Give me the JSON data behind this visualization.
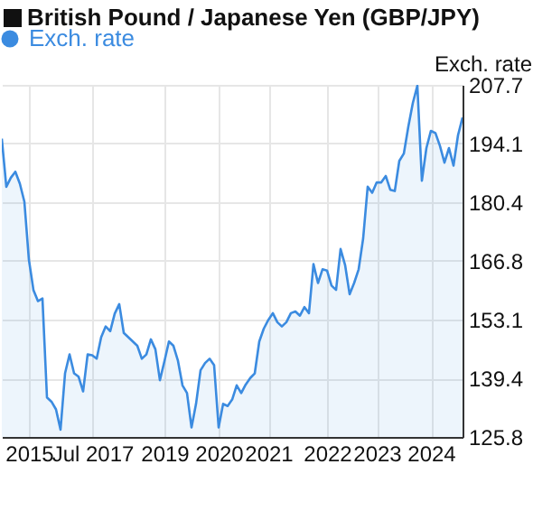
{
  "chart_data": {
    "type": "area",
    "title": "British Pound / Japanese Yen (GBP/JPY)",
    "ylabel": "Exch. rate",
    "categories": [
      null,
      null,
      null,
      null,
      null,
      null,
      "2015",
      null,
      null,
      null,
      null,
      null,
      null,
      null,
      null,
      null,
      null,
      null,
      null,
      null,
      "Jul 2017",
      null,
      null,
      null,
      null,
      null,
      null,
      null,
      null,
      null,
      null,
      null,
      null,
      null,
      null,
      null,
      "2019",
      null,
      null,
      null,
      null,
      null,
      null,
      null,
      null,
      null,
      null,
      null,
      "2020",
      null,
      null,
      null,
      null,
      null,
      null,
      null,
      null,
      null,
      null,
      "2021",
      null,
      null,
      null,
      null,
      null,
      null,
      null,
      null,
      null,
      null,
      null,
      null,
      "2022",
      null,
      null,
      null,
      null,
      null,
      null,
      null,
      null,
      null,
      null,
      "2023",
      null,
      null,
      null,
      null,
      null,
      null,
      null,
      null,
      null,
      null,
      null,
      "2024",
      null,
      null,
      null,
      null,
      null,
      null,
      null
    ],
    "series": [
      {
        "name": "Exch. rate",
        "color": "#3b8be0",
        "values": [
          195.2,
          184,
          186.1,
          187.5,
          184.7,
          180.5,
          167,
          160,
          157.4,
          158,
          135,
          134,
          132.2,
          127.5,
          140.6,
          145,
          140.6,
          139.8,
          136.4,
          145,
          144.8,
          144,
          149,
          151.5,
          150.4,
          154.5,
          156.7,
          150,
          149,
          148,
          147,
          144,
          145,
          148.5,
          146.2,
          139,
          143.4,
          148,
          147,
          143.5,
          137.8,
          136,
          128,
          133.5,
          141.3,
          143,
          144,
          142.5,
          128,
          133.5,
          133,
          134.5,
          137.8,
          136,
          138,
          139.5,
          140.6,
          148,
          151,
          153,
          154.6,
          152.5,
          151.5,
          152.5,
          154.6,
          155,
          154,
          156,
          154.6,
          166,
          161.6,
          164.8,
          164.5,
          161,
          160,
          169.5,
          165.8,
          159,
          161.6,
          164.8,
          172,
          184,
          182.6,
          185,
          185,
          186.5,
          183.3,
          183,
          190,
          191.7,
          198,
          203.5,
          207.5,
          185.4,
          193,
          197,
          196.5,
          193.5,
          189.6,
          193,
          188.9,
          196,
          200.1
        ]
      }
    ],
    "ylim": [
      125.8,
      207.7
    ],
    "yticks": [
      125.8,
      139.4,
      153.1,
      166.8,
      180.4,
      194.1,
      207.7
    ],
    "grid": true,
    "legend": "top left"
  }
}
